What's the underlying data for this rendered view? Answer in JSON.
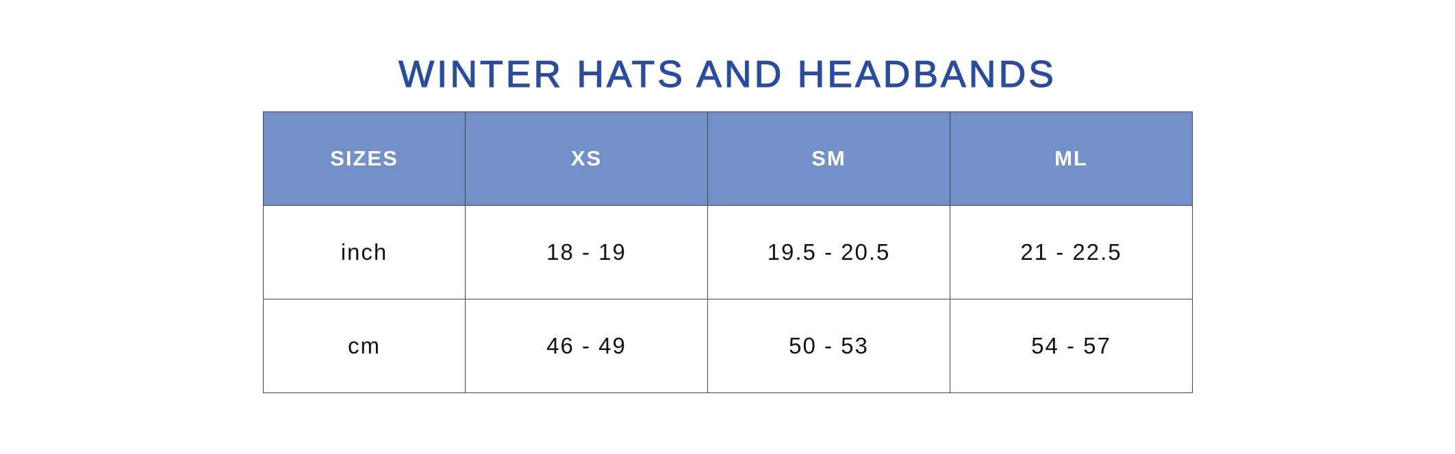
{
  "title": "WINTER HATS AND HEADBANDS",
  "colors": {
    "title": "#2b4c9b",
    "header_bg": "#7391c8",
    "header_text": "#ffffff"
  },
  "table": {
    "headers": [
      "SIZES",
      "XS",
      "SM",
      "ML"
    ],
    "rows": [
      [
        "inch",
        "18 - 19",
        "19.5 - 20.5",
        "21 - 22.5"
      ],
      [
        "cm",
        "46 - 49",
        "50 - 53",
        "54 - 57"
      ]
    ]
  }
}
